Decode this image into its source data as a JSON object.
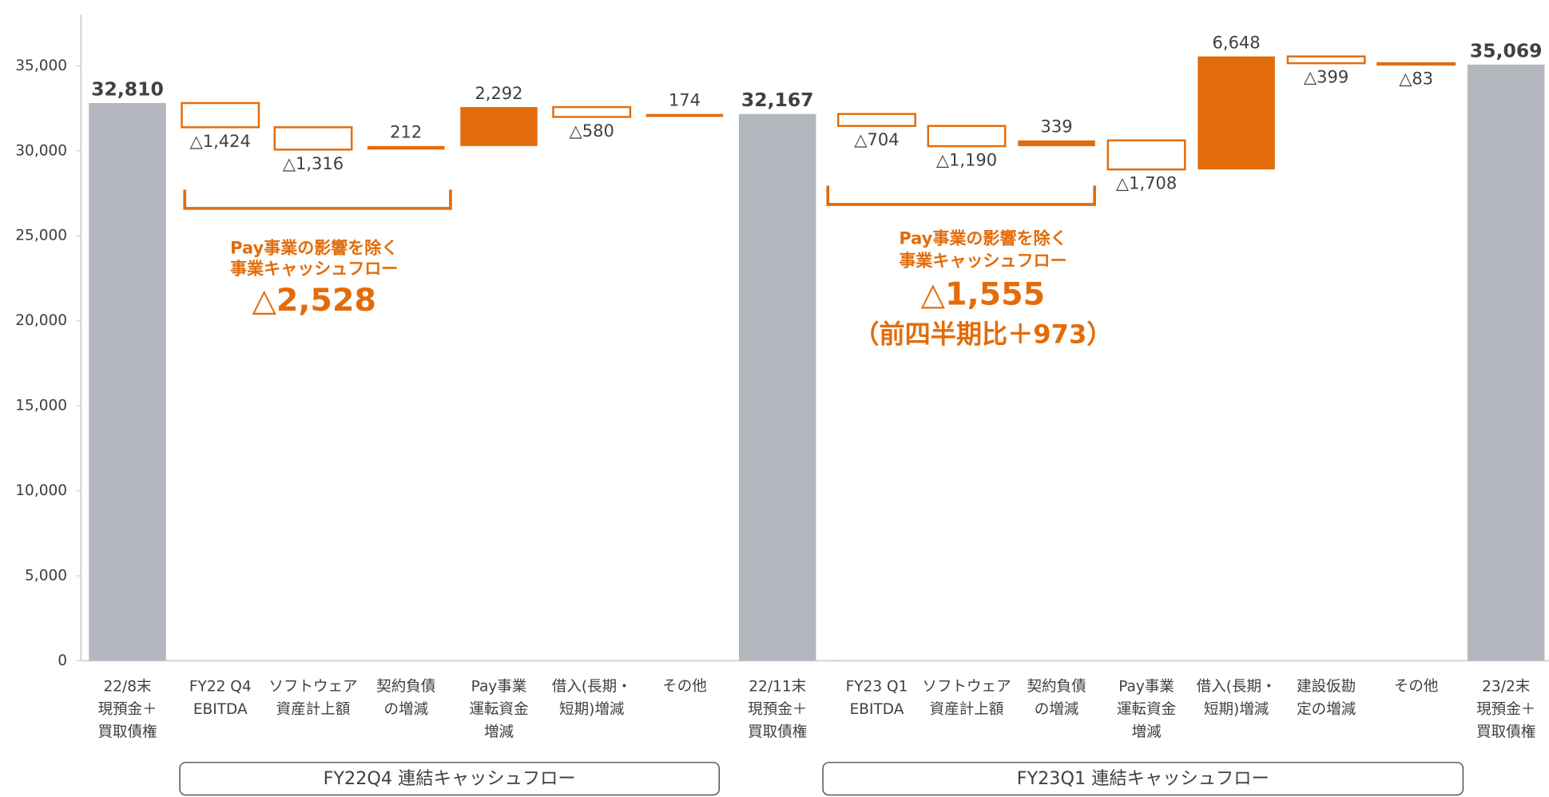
{
  "chart_data": [
    {
      "type": "waterfall",
      "categories": [
        "22/8末\n現預金＋\n買取債権",
        "FY22 Q4\nEBITDA",
        "ソフトウェア\n資産計上額",
        "契約負債\nの増減",
        "Pay事業\n運転資金\n増減",
        "借入(長期・\n短期)増減",
        "その他",
        "22/11末\n現預金＋\n買取債権"
      ],
      "values": [
        32810,
        -1424,
        -1316,
        212,
        2292,
        -580,
        174,
        32167
      ],
      "value_labels": [
        "32,810",
        "△1,424",
        "△1,316",
        "212",
        "2,292",
        "△580",
        "174",
        "32,167"
      ],
      "measure": [
        "total",
        "relative",
        "relative",
        "relative",
        "relative",
        "relative",
        "relative",
        "total"
      ],
      "ylim": [
        0,
        38000
      ],
      "yticks": [
        0,
        {
          "value": 5000,
          "label": "5,000"
        },
        {
          "value": 10000,
          "label": "10,000"
        },
        {
          "value": 15000,
          "label": "15,000"
        },
        {
          "value": 20000,
          "label": "20,000"
        },
        {
          "value": 25000,
          "label": "25,000"
        },
        {
          "value": 30000,
          "label": "30,000"
        },
        {
          "value": 35000,
          "label": "35,000"
        }
      ],
      "colors": {
        "total": "#b3b6bd",
        "increase": "#e36c0a",
        "decrease": "#e36c0a"
      },
      "annotations": [
        "Pay事業の影響を除く",
        "事業キャッシュフロー",
        "△2,528"
      ],
      "group_label": "FY22Q4 連結キャッシュフロー"
    },
    {
      "type": "waterfall",
      "categories": [
        "FY23 Q1\nEBITDA",
        "ソフトウェア\n資産計上額",
        "契約負債\nの増減",
        "Pay事業\n運転資金\n増減",
        "借入(長期・\n短期)増減",
        "建設仮勘\n定の増減",
        "その他",
        "23/2末\n現預金＋\n買取債権"
      ],
      "values": [
        -704,
        -1190,
        339,
        -1708,
        6648,
        -399,
        -83,
        35069
      ],
      "value_labels": [
        "△704",
        "△1,190",
        "339",
        "△1,708",
        "6,648",
        "△399",
        "△83",
        "35,069"
      ],
      "measure": [
        "relative",
        "relative",
        "relative",
        "relative",
        "relative",
        "relative",
        "relative",
        "total"
      ],
      "ylim": [
        0,
        38000
      ],
      "colors": {
        "total": "#b3b6bd",
        "increase": "#e36c0a",
        "decrease": "#e36c0a"
      },
      "annotations": [
        "Pay事業の影響を除く",
        "事業キャッシュフロー",
        "△1,555",
        "（前四半期比＋973）"
      ],
      "group_label": "FY23Q1 連結キャッシュフロー"
    }
  ]
}
